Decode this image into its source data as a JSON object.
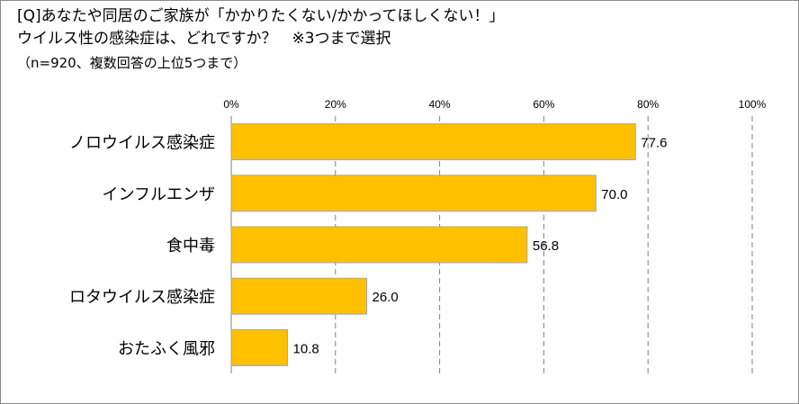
{
  "title": {
    "line1": "[Q]あなたや同居のご家族が「かかりたくない/かかってほしくない！」",
    "line2": "ウイルス性の感染症は、どれですか？　※3つまで選択",
    "line3": "（n=920、複数回答の上位5つまで）"
  },
  "colors": {
    "bar_fill": "#FFC000",
    "bar_stroke": "#A6A6A6",
    "grid": "#808080",
    "border": "#8C8C8C"
  },
  "chart_data": {
    "type": "bar",
    "orientation": "horizontal",
    "categories": [
      "ノロウイルス感染症",
      "インフルエンザ",
      "食中毒",
      "ロタウイルス感染症",
      "おたふく風邪"
    ],
    "values": [
      77.6,
      70.0,
      56.8,
      26.0,
      10.8
    ],
    "value_labels": [
      "77.6",
      "70.0",
      "56.8",
      "26.0",
      "10.8"
    ],
    "xticks": [
      "0%",
      "20%",
      "40%",
      "60%",
      "80%",
      "100%"
    ],
    "xlim": [
      0,
      100
    ],
    "xaxis_position": "top",
    "grid": "vertical dashed",
    "legend": "none"
  }
}
